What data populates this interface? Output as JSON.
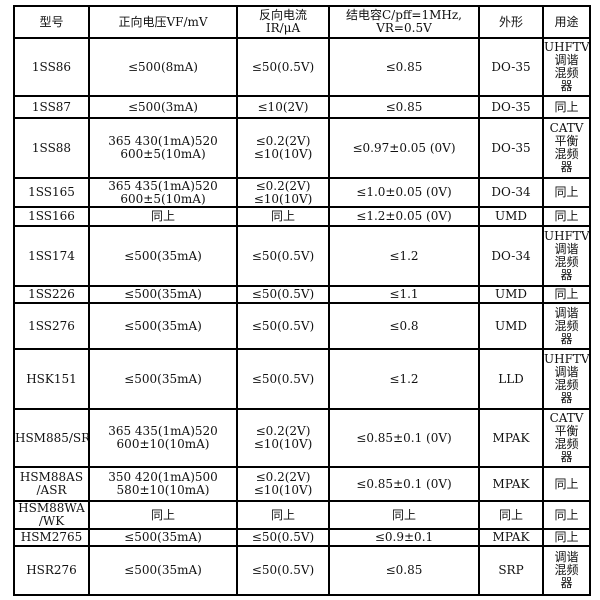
{
  "headers": [
    "型号",
    "正向电压VF/mV",
    "反向电流\nIR/μA",
    "结电容C/pff=1MHz,\nVR=0.5V",
    "外形",
    "用途"
  ],
  "rows": [
    {
      "model": [
        "1SS86"
      ],
      "vf": [
        "≤500(8mA)"
      ],
      "ir": [
        "≤50(0.5V)"
      ],
      "c": [
        "≤0.85"
      ],
      "pkg": "DO-35",
      "use": [
        "UHFTV",
        "调谐",
        "混频",
        "器"
      ]
    },
    {
      "model": [
        "1SS87"
      ],
      "vf": [
        "≤500(3mA)"
      ],
      "ir": [
        "≤10(2V)"
      ],
      "c": [
        "≤0.85"
      ],
      "pkg": "DO-35",
      "use": [
        "同上"
      ]
    },
    {
      "model": [
        "1SS88"
      ],
      "vf": [
        "365    430(1mA)520",
        "600±5(10mA)"
      ],
      "ir": [
        "≤0.2(2V)",
        "≤10(10V)"
      ],
      "c": [
        "≤0.97±0.05 (0V)"
      ],
      "pkg": "DO-35",
      "use": [
        "CATV",
        "平衡",
        "混频",
        "器"
      ]
    },
    {
      "model": [
        "1SS165"
      ],
      "vf": [
        "365    435(1mA)520",
        "600±5(10mA)"
      ],
      "ir": [
        "≤0.2(2V)",
        "≤10(10V)"
      ],
      "c": [
        "≤1.0±0.05 (0V)"
      ],
      "pkg": "DO-34",
      "use": [
        "同上"
      ]
    },
    {
      "model": [
        "1SS166"
      ],
      "vf": [
        "同上"
      ],
      "ir": [
        "同上"
      ],
      "c": [
        "≤1.2±0.05 (0V)"
      ],
      "pkg": "UMD",
      "use": [
        "同上"
      ]
    },
    {
      "model": [
        "1SS174"
      ],
      "vf": [
        "≤500(35mA)"
      ],
      "ir": [
        "≤50(0.5V)"
      ],
      "c": [
        "≤1.2"
      ],
      "pkg": "DO-34",
      "use": [
        "UHFTV",
        "调谐",
        "混频",
        "器"
      ]
    },
    {
      "model": [
        "1SS226"
      ],
      "vf": [
        "≤500(35mA)"
      ],
      "ir": [
        "≤50(0.5V)"
      ],
      "c": [
        "≤1.1"
      ],
      "pkg": "UMD",
      "use": [
        "同上"
      ]
    },
    {
      "model": [
        "1SS276"
      ],
      "vf": [
        "≤500(35mA)"
      ],
      "ir": [
        "≤50(0.5V)"
      ],
      "c": [
        "≤0.8"
      ],
      "pkg": "UMD",
      "use": [
        "调谐",
        "混频",
        "器"
      ]
    },
    {
      "model": [
        "HSK151"
      ],
      "vf": [
        "≤500(35mA)"
      ],
      "ir": [
        "≤50(0.5V)"
      ],
      "c": [
        "≤1.2"
      ],
      "pkg": "LLD",
      "use": [
        "UHFTV",
        "调谐",
        "混频",
        "器"
      ]
    },
    {
      "model": [
        "HSM885/SR"
      ],
      "vf": [
        "365    435(1mA)520",
        "600±10(10mA)"
      ],
      "ir": [
        "≤0.2(2V)",
        "≤10(10V)"
      ],
      "c": [
        "≤0.85±0.1 (0V)"
      ],
      "pkg": "MPAK",
      "use": [
        "CATV",
        "平衡",
        "混频",
        "器"
      ]
    },
    {
      "model": [
        "HSM88AS",
        "/ASR"
      ],
      "vf": [
        "350    420(1mA)500",
        "580±10(10mA)"
      ],
      "ir": [
        "≤0.2(2V)",
        "≤10(10V)"
      ],
      "c": [
        "≤0.85±0.1 (0V)"
      ],
      "pkg": "MPAK",
      "use": [
        "同上"
      ]
    },
    {
      "model": [
        "HSM88WA",
        "/WK"
      ],
      "vf": [
        "同上"
      ],
      "ir": [
        "同上"
      ],
      "c": [
        "同上"
      ],
      "pkg": "同上",
      "use": [
        "同上"
      ]
    },
    {
      "model": [
        "HSM2765"
      ],
      "vf": [
        "≤500(35mA)"
      ],
      "ir": [
        "≤50(0.5V)"
      ],
      "c": [
        "≤0.9±0.1"
      ],
      "pkg": "MPAK",
      "use": [
        "同上"
      ]
    },
    {
      "model": [
        "HSR276"
      ],
      "vf": [
        "≤500(35mA)"
      ],
      "ir": [
        "≤50(0.5V)"
      ],
      "c": [
        "≤0.85"
      ],
      "pkg": "SRP",
      "use": [
        "调谐",
        "混频",
        "器"
      ]
    }
  ]
}
